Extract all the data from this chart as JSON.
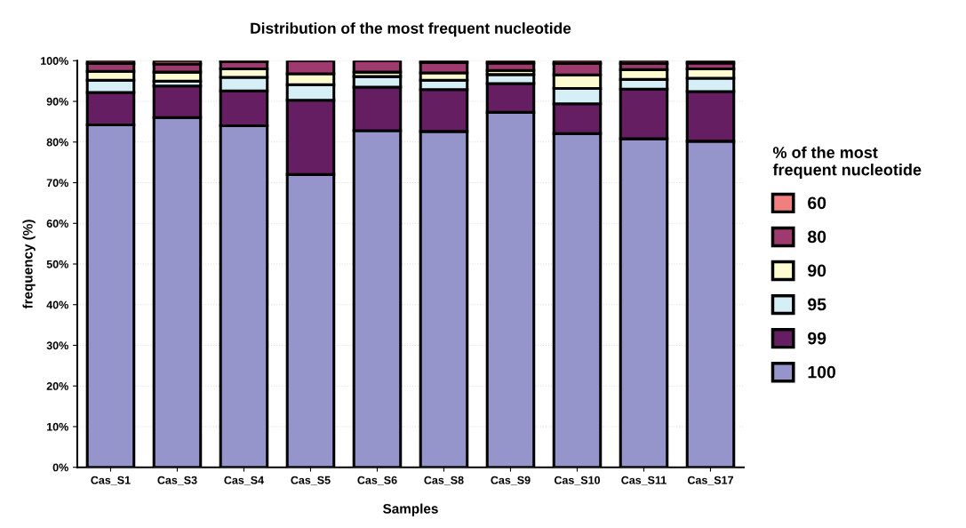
{
  "chart_data": {
    "type": "bar",
    "stacked": true,
    "title": "Distribution of the most frequent nucleotide",
    "xlabel": "Samples",
    "ylabel": "frequency (%)",
    "legend_title": "% of the most\nfrequent nucleotide",
    "legend": "right",
    "grid": "y",
    "categories": [
      "Cas_S1",
      "Cas_S3",
      "Cas_S4",
      "Cas_S5",
      "Cas_S6",
      "Cas_S8",
      "Cas_S9",
      "Cas_S10",
      "Cas_S11",
      "Cas_S17"
    ],
    "ylim": [
      0,
      100
    ],
    "yticks": [
      {
        "value": 0,
        "label": "0%"
      },
      {
        "value": 10,
        "label": "10%"
      },
      {
        "value": 20,
        "label": "20%"
      },
      {
        "value": 30,
        "label": "30%"
      },
      {
        "value": 40,
        "label": "40%"
      },
      {
        "value": 50,
        "label": "50%"
      },
      {
        "value": 60,
        "label": "60%"
      },
      {
        "value": 70,
        "label": "70%"
      },
      {
        "value": 80,
        "label": "80%"
      },
      {
        "value": 90,
        "label": "90%"
      },
      {
        "value": 100,
        "label": "100%"
      }
    ],
    "series": [
      {
        "name": "100",
        "color": "#9595cb",
        "values": [
          84.2,
          86.0,
          84.0,
          72.0,
          82.8,
          82.6,
          87.3,
          82.1,
          80.8,
          80.2
        ]
      },
      {
        "name": "99",
        "color": "#661e62",
        "values": [
          8.0,
          7.8,
          8.6,
          18.3,
          10.7,
          10.3,
          7.1,
          7.3,
          12.2,
          12.2
        ]
      },
      {
        "name": "95",
        "color": "#d6eef5",
        "values": [
          3.0,
          1.2,
          3.3,
          3.8,
          2.6,
          2.3,
          2.2,
          3.8,
          2.4,
          3.3
        ]
      },
      {
        "name": "90",
        "color": "#fdfbd0",
        "values": [
          2.2,
          2.2,
          2.1,
          2.7,
          1.1,
          1.8,
          1.0,
          3.3,
          2.4,
          2.3
        ]
      },
      {
        "name": "80",
        "color": "#9e3a6e",
        "values": [
          1.9,
          2.0,
          1.8,
          3.2,
          2.8,
          2.6,
          1.8,
          2.8,
          1.5,
          1.4
        ]
      },
      {
        "name": "60",
        "color": "#f08080",
        "values": [
          0.7,
          0.8,
          0.2,
          null,
          null,
          0.4,
          0.6,
          0.7,
          0.7,
          0.6
        ]
      }
    ]
  }
}
